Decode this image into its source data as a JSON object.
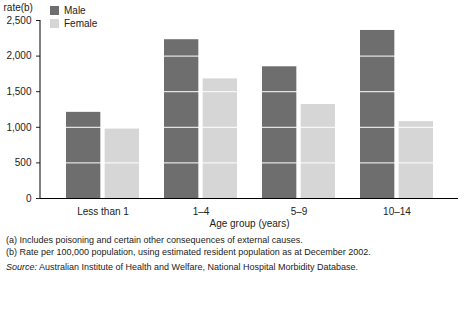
{
  "chart_data": {
    "type": "bar",
    "categories": [
      "Less than 1",
      "1–4",
      "5–9",
      "10–14"
    ],
    "series": [
      {
        "name": "Male",
        "color": "#6e6e6e",
        "values": [
          1210,
          2230,
          1850,
          2360
        ]
      },
      {
        "name": "Female",
        "color": "#d6d6d6",
        "values": [
          975,
          1680,
          1320,
          1080
        ]
      }
    ],
    "y_label": "rate(b)",
    "x_label": "Age group (years)",
    "ylim": [
      0,
      2500
    ],
    "yticks": [
      0,
      500,
      1000,
      1500,
      2000,
      2500
    ],
    "grid": true,
    "legend": "top-left",
    "notes": [
      "(a) Includes poisoning and certain other consequences of external causes.",
      "(b) Rate per 100,000 population, using estimated resident population as at December 2002."
    ],
    "source": "Source: Australian Institute of Health and Welfare, National Hospital Morbidity Database."
  }
}
